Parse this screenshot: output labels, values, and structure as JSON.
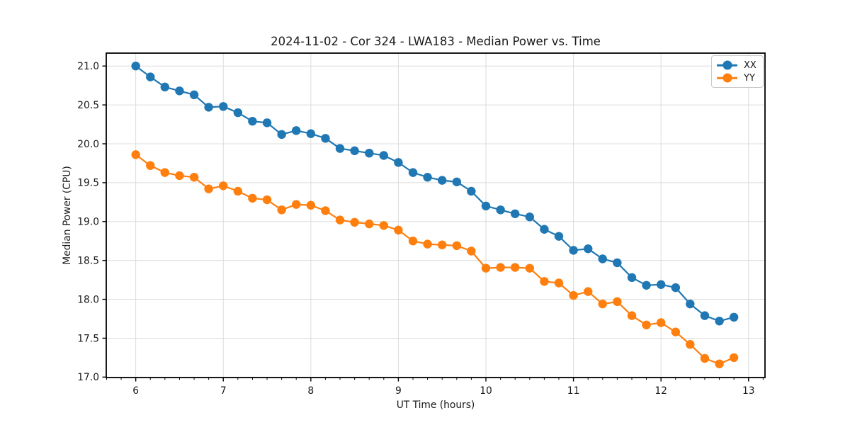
{
  "figure": {
    "title": "2024-11-02 - Cor 324 - LWA183 - Median Power vs. Time",
    "xlabel": "UT Time (hours)",
    "ylabel": "Median Power (CPU)"
  },
  "legend": {
    "position": "upper right",
    "entries": [
      {
        "label": "XX",
        "color": "#1f77b4"
      },
      {
        "label": "YY",
        "color": "#ff7f0e"
      }
    ]
  },
  "colors": {
    "series_xx": "#1f77b4",
    "series_yy": "#ff7f0e",
    "grid": "#dcdcdc",
    "spine": "#000000",
    "text": "#1a1a1a",
    "background": "#ffffff"
  },
  "chart_data": {
    "type": "line",
    "title": "2024-11-02 - Cor 324 - LWA183 - Median Power vs. Time",
    "xlabel": "UT Time (hours)",
    "ylabel": "Median Power (CPU)",
    "grid": true,
    "marker": "o",
    "legend_position": "upper right",
    "xlim": [
      5.663,
      13.188
    ],
    "ylim": [
      16.994,
      21.166
    ],
    "x_ticks": [
      6,
      7,
      8,
      9,
      10,
      11,
      12,
      13
    ],
    "x_minor_tick_step": 0.1667,
    "y_ticks": [
      17.0,
      17.5,
      18.0,
      18.5,
      19.0,
      19.5,
      20.0,
      20.5,
      21.0
    ],
    "x": [
      6.0,
      6.167,
      6.333,
      6.5,
      6.667,
      6.833,
      7.0,
      7.167,
      7.333,
      7.5,
      7.667,
      7.833,
      8.0,
      8.167,
      8.333,
      8.5,
      8.667,
      8.833,
      9.0,
      9.167,
      9.333,
      9.5,
      9.667,
      9.833,
      10.0,
      10.167,
      10.333,
      10.5,
      10.667,
      10.833,
      11.0,
      11.167,
      11.333,
      11.5,
      11.667,
      11.833,
      12.0,
      12.167,
      12.333,
      12.5,
      12.667,
      12.833
    ],
    "series": [
      {
        "name": "XX",
        "color": "#1f77b4",
        "values": [
          21.0,
          20.86,
          20.73,
          20.68,
          20.63,
          20.47,
          20.48,
          20.4,
          20.29,
          20.27,
          20.12,
          20.17,
          20.13,
          20.07,
          19.94,
          19.91,
          19.88,
          19.85,
          19.76,
          19.63,
          19.57,
          19.53,
          19.51,
          19.39,
          19.2,
          19.15,
          19.1,
          19.06,
          18.9,
          18.81,
          18.63,
          18.65,
          18.52,
          18.47,
          18.28,
          18.18,
          18.19,
          18.15,
          17.94,
          17.79,
          17.72,
          17.77
        ]
      },
      {
        "name": "YY",
        "color": "#ff7f0e",
        "values": [
          19.86,
          19.72,
          19.63,
          19.59,
          19.57,
          19.42,
          19.46,
          19.39,
          19.3,
          19.28,
          19.15,
          19.22,
          19.21,
          19.14,
          19.02,
          18.99,
          18.97,
          18.95,
          18.89,
          18.75,
          18.71,
          18.7,
          18.69,
          18.62,
          18.4,
          18.41,
          18.41,
          18.4,
          18.23,
          18.21,
          18.05,
          18.1,
          17.94,
          17.97,
          17.79,
          17.67,
          17.7,
          17.58,
          17.42,
          17.24,
          17.17,
          17.25
        ]
      }
    ]
  }
}
